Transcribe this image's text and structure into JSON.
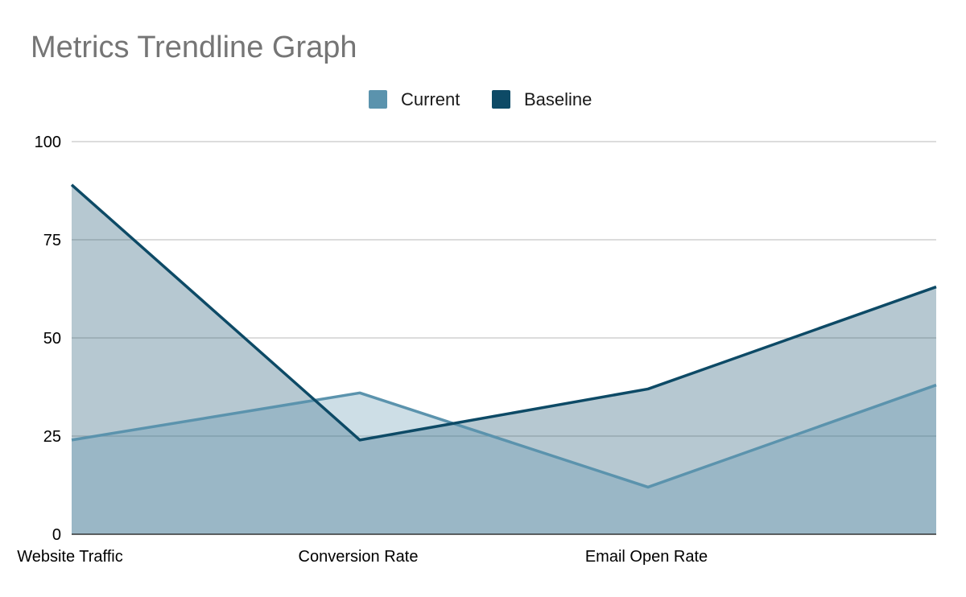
{
  "chart_data": {
    "type": "area",
    "title": "Metrics Trendline Graph",
    "categories": [
      "Website Traffic",
      "Conversion Rate",
      "Email Open Rate",
      ""
    ],
    "series": [
      {
        "name": "Current",
        "values": [
          24,
          36,
          12,
          38
        ],
        "color": "#5b93ad"
      },
      {
        "name": "Baseline",
        "values": [
          89,
          24,
          37,
          63
        ],
        "color": "#0d4a66"
      }
    ],
    "yticks": [
      0,
      25,
      50,
      75,
      100
    ],
    "ylim": [
      0,
      100
    ],
    "grid": true,
    "legend_position": "top"
  }
}
